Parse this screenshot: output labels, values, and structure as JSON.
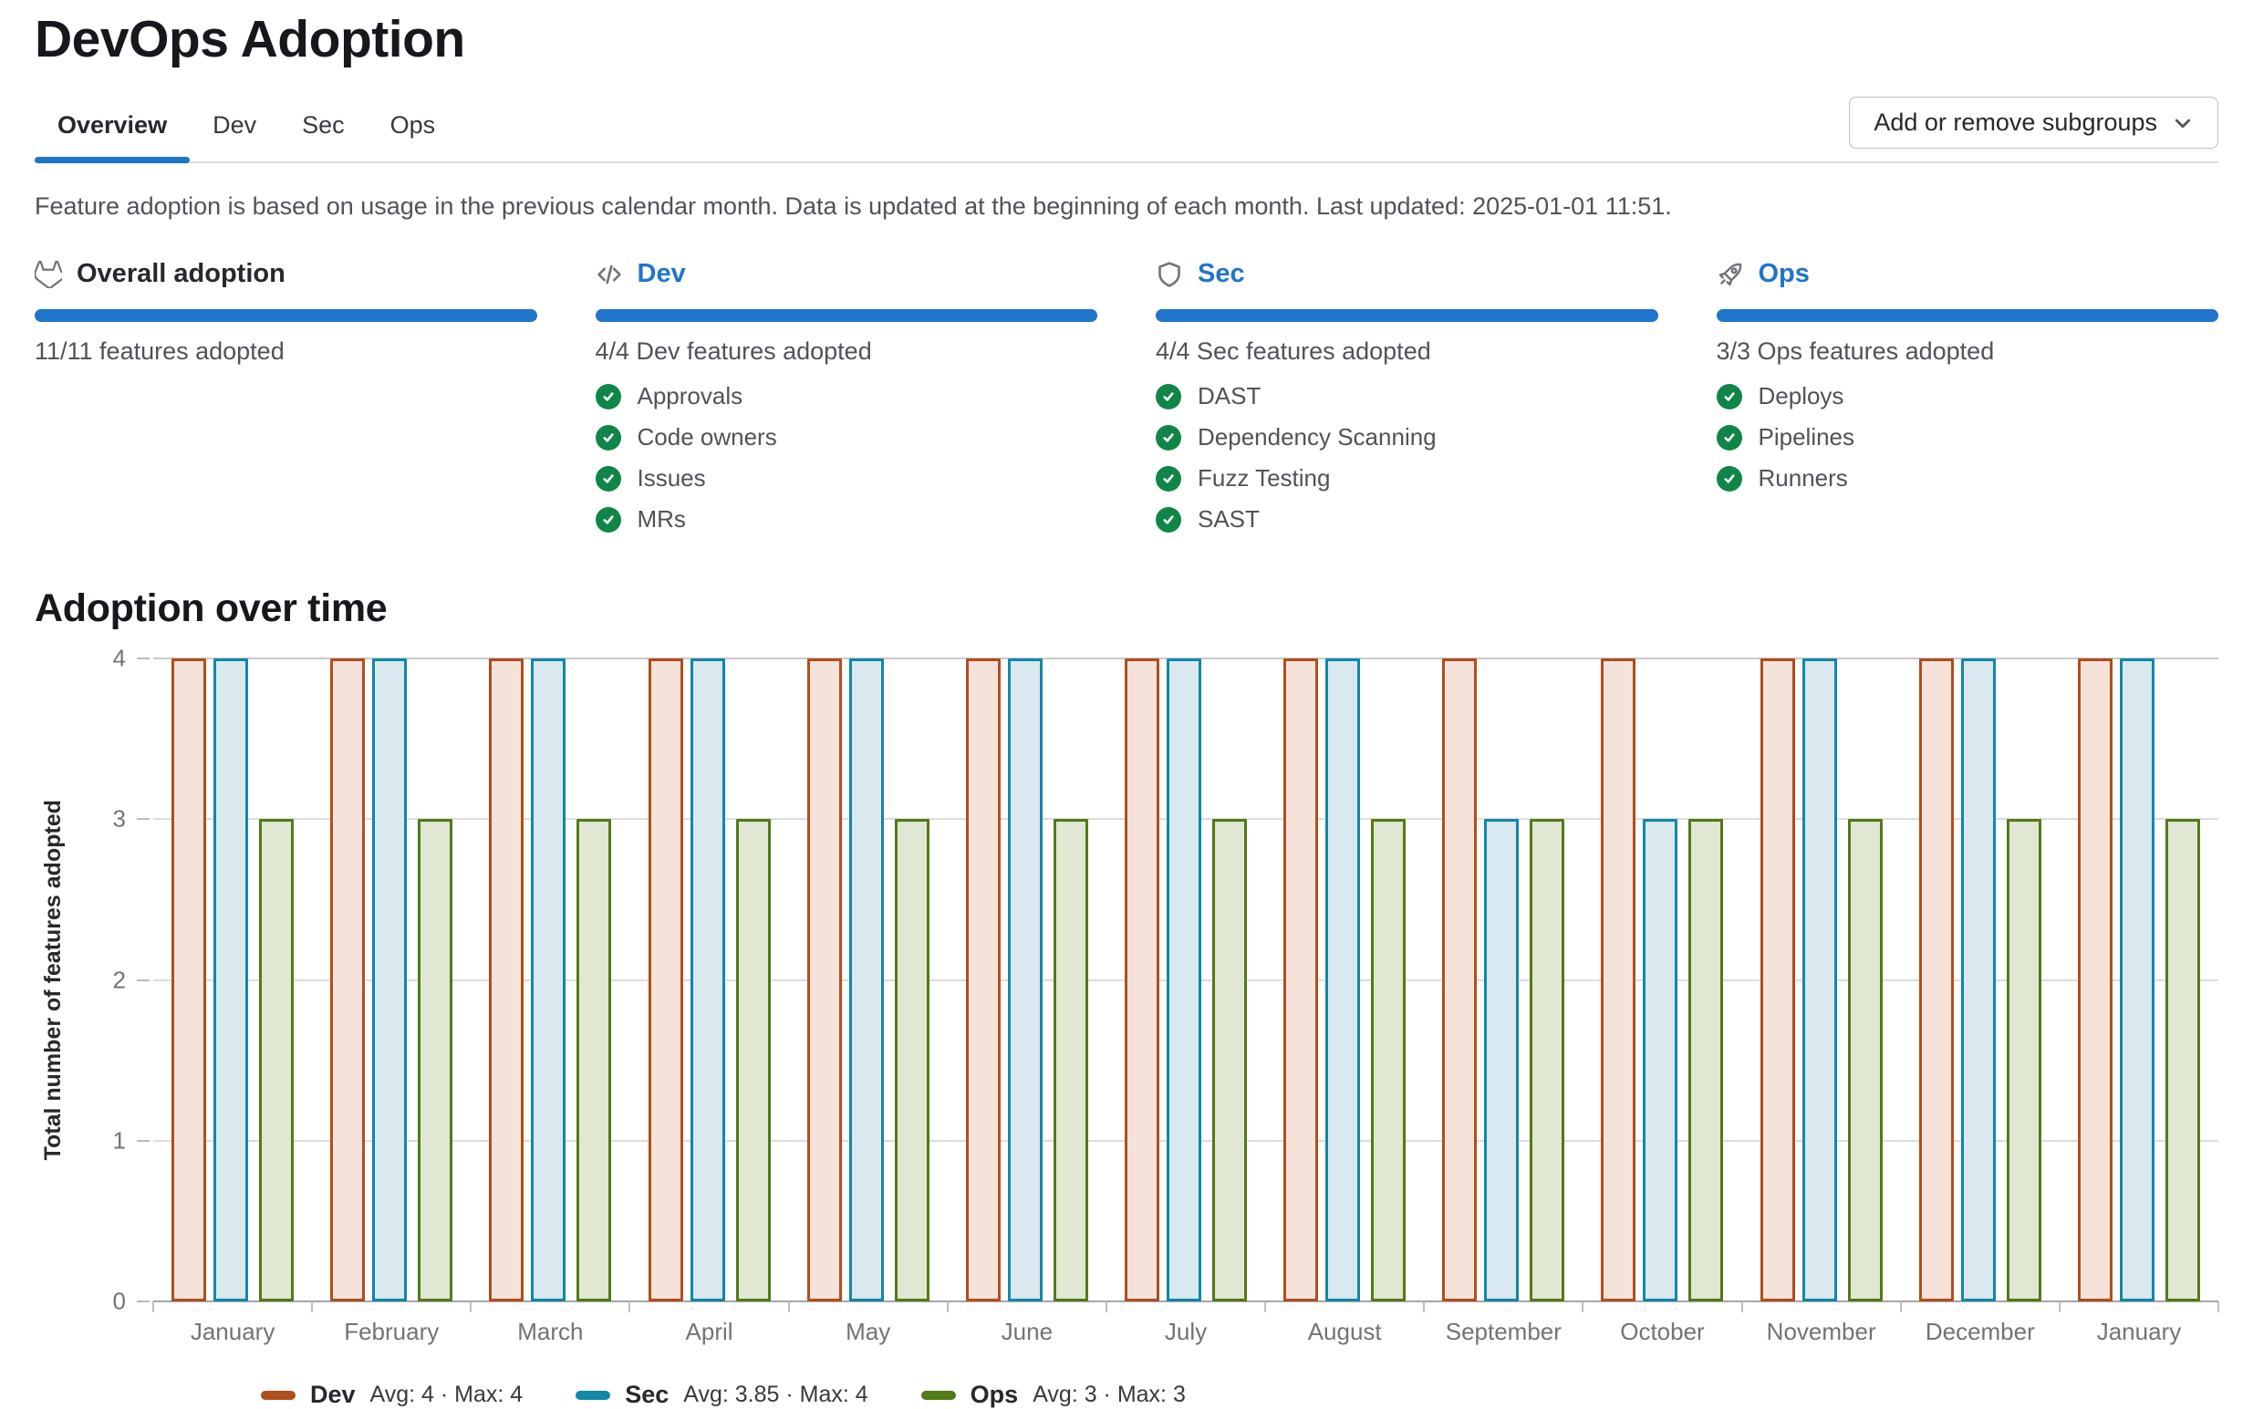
{
  "header": {
    "title": "DevOps Adoption"
  },
  "tabs": [
    {
      "label": "Overview",
      "active": true
    },
    {
      "label": "Dev",
      "active": false
    },
    {
      "label": "Sec",
      "active": false
    },
    {
      "label": "Ops",
      "active": false
    }
  ],
  "toolbar": {
    "subgroups_button_label": "Add or remove subgroups"
  },
  "info_text": "Feature adoption is based on usage in the previous calendar month. Data is updated at the beginning of each month. Last updated: 2025-01-01 11:51.",
  "cards": [
    {
      "icon": "tanuki-icon",
      "title": "Overall adoption",
      "title_is_link": false,
      "progress_percent": 100,
      "summary": "11/11 features adopted",
      "features": []
    },
    {
      "icon": "code-icon",
      "title": "Dev",
      "title_is_link": true,
      "progress_percent": 100,
      "summary": "4/4 Dev features adopted",
      "features": [
        "Approvals",
        "Code owners",
        "Issues",
        "MRs"
      ]
    },
    {
      "icon": "shield-icon",
      "title": "Sec",
      "title_is_link": true,
      "progress_percent": 100,
      "summary": "4/4 Sec features adopted",
      "features": [
        "DAST",
        "Dependency Scanning",
        "Fuzz Testing",
        "SAST"
      ]
    },
    {
      "icon": "rocket-icon",
      "title": "Ops",
      "title_is_link": true,
      "progress_percent": 100,
      "summary": "3/3 Ops features adopted",
      "features": [
        "Deploys",
        "Pipelines",
        "Runners"
      ]
    }
  ],
  "section": {
    "title": "Adoption over time"
  },
  "chart_data": {
    "type": "bar",
    "title": "Adoption over time",
    "categories": [
      "January",
      "February",
      "March",
      "April",
      "May",
      "June",
      "July",
      "August",
      "September",
      "October",
      "November",
      "December",
      "January"
    ],
    "series": [
      {
        "name": "Dev",
        "color": "#b14e1d",
        "fill": "#f5e3da",
        "values": [
          4,
          4,
          4,
          4,
          4,
          4,
          4,
          4,
          4,
          4,
          4,
          4,
          4
        ],
        "legend_stats": "Avg: 4 · Max: 4"
      },
      {
        "name": "Sec",
        "color": "#1287a8",
        "fill": "#d9e9ef",
        "values": [
          4,
          4,
          4,
          4,
          4,
          4,
          4,
          4,
          3,
          3,
          4,
          4,
          4
        ],
        "legend_stats": "Avg: 3.85 · Max: 4"
      },
      {
        "name": "Ops",
        "color": "#527a18",
        "fill": "#e0e8d3",
        "values": [
          3,
          3,
          3,
          3,
          3,
          3,
          3,
          3,
          3,
          3,
          3,
          3,
          3
        ],
        "legend_stats": "Avg: 3 · Max: 3"
      }
    ],
    "xlabel": "",
    "ylabel": "Total number of features adopted",
    "ylim": [
      0,
      4
    ],
    "yticks": [
      0,
      1,
      2,
      3,
      4
    ],
    "grid": true,
    "legend_position": "bottom"
  },
  "colors": {
    "accent_blue": "#1f75cb",
    "success_green": "#108548",
    "progress_blue": "#1f75cb"
  }
}
